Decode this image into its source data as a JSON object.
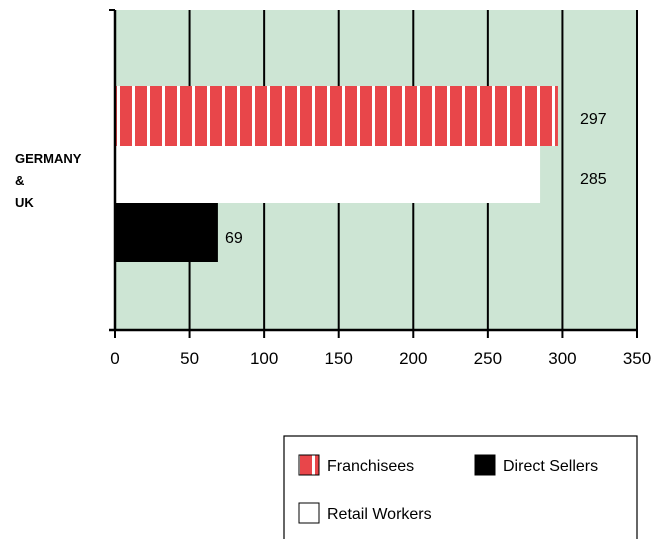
{
  "chart_data": {
    "type": "bar",
    "orientation": "horizontal",
    "categories": [
      "GERMANY & UK"
    ],
    "category_label_lines": [
      "GERMANY",
      "&",
      "UK"
    ],
    "series": [
      {
        "name": "Franchisees",
        "values": [
          297
        ],
        "color": "#e8464a",
        "pattern": "vertical-stripes"
      },
      {
        "name": "Retail Workers",
        "values": [
          285
        ],
        "color": "#ffffff"
      },
      {
        "name": "Direct Sellers",
        "values": [
          69
        ],
        "color": "#000000"
      }
    ],
    "xlim": [
      0,
      350
    ],
    "xticks": [
      "0",
      "50",
      "100",
      "150",
      "200",
      "250",
      "300",
      "350"
    ],
    "grid": true,
    "plot_background": "#cde5d4",
    "legend": {
      "placement": "bottom-right"
    }
  }
}
